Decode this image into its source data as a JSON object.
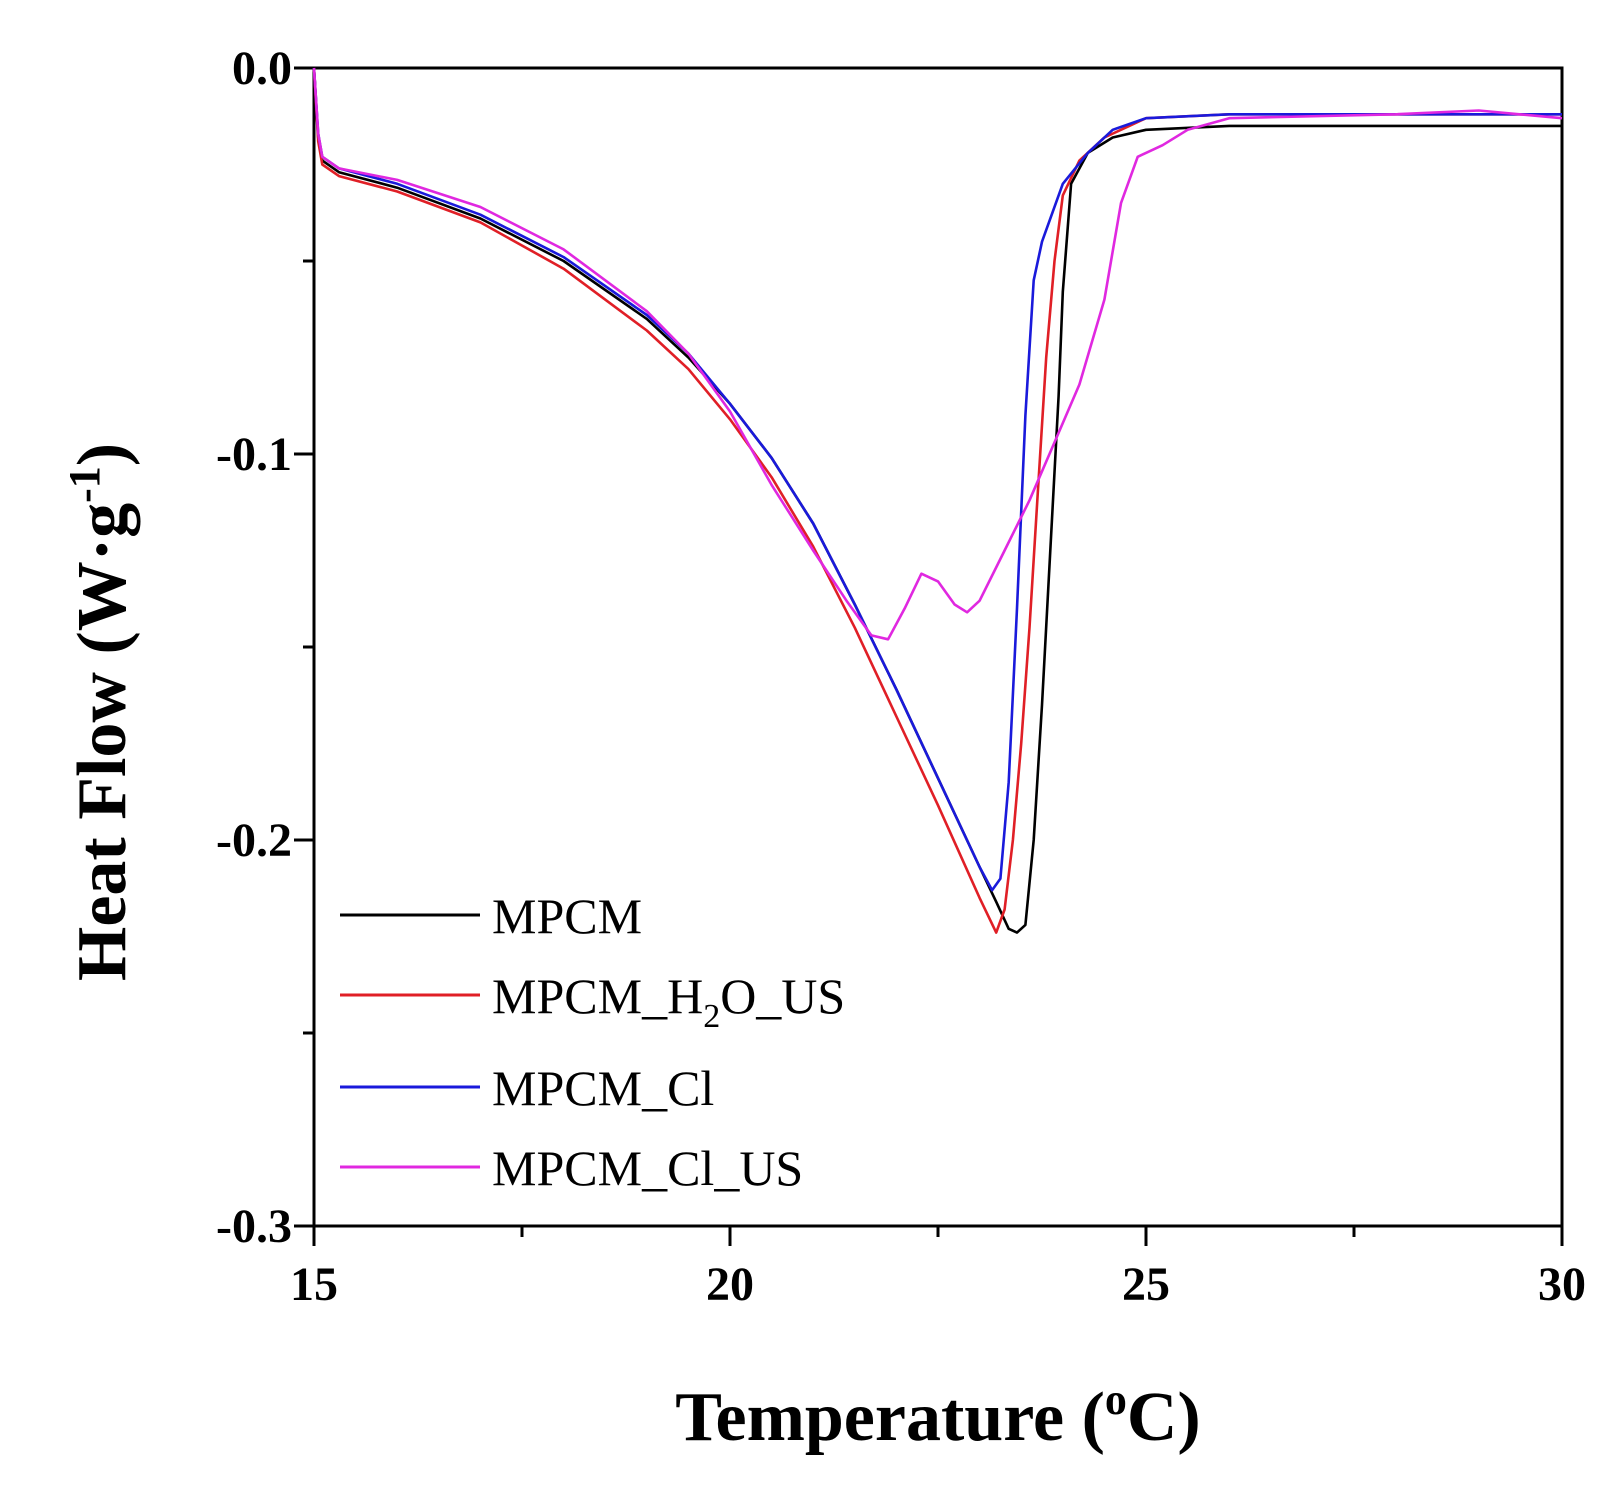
{
  "chart_data": {
    "type": "line",
    "xlabel": "Temperature (°C)",
    "xlabel_parts": {
      "before": "Temperature (",
      "sup": "o",
      "after": "C)"
    },
    "ylabel": "Heat Flow (W·g⁻¹)",
    "ylabel_parts": {
      "before": "Heat Flow (W·g",
      "sup": "-1",
      "after": ")"
    },
    "xlim": [
      15,
      30
    ],
    "ylim": [
      -0.3,
      0.0
    ],
    "x_ticks": [
      15,
      20,
      25,
      30
    ],
    "x_tick_labels": [
      "15",
      "20",
      "25",
      "30"
    ],
    "x_minor_ticks": [
      17.5,
      22.5,
      27.5
    ],
    "y_ticks": [
      0.0,
      -0.1,
      -0.2,
      -0.3
    ],
    "y_tick_labels": [
      "0.0",
      "-0.1",
      "-0.2",
      "-0.3"
    ],
    "y_minor_ticks": [
      -0.05,
      -0.15,
      -0.25
    ],
    "grid": false,
    "legend_position": "bottom-left",
    "series": [
      {
        "name": "MPCM",
        "label_parts": {
          "before": "MPCM",
          "sub": "",
          "after": ""
        },
        "color": "#000000",
        "points": [
          [
            15.0,
            0.0
          ],
          [
            15.05,
            -0.018
          ],
          [
            15.1,
            -0.024
          ],
          [
            15.3,
            -0.027
          ],
          [
            16.0,
            -0.031
          ],
          [
            17.0,
            -0.039
          ],
          [
            18.0,
            -0.05
          ],
          [
            19.0,
            -0.065
          ],
          [
            19.5,
            -0.075
          ],
          [
            20.0,
            -0.087
          ],
          [
            20.5,
            -0.101
          ],
          [
            21.0,
            -0.118
          ],
          [
            21.5,
            -0.139
          ],
          [
            22.0,
            -0.161
          ],
          [
            22.5,
            -0.184
          ],
          [
            23.0,
            -0.207
          ],
          [
            23.2,
            -0.216
          ],
          [
            23.35,
            -0.223
          ],
          [
            23.45,
            -0.224
          ],
          [
            23.55,
            -0.222
          ],
          [
            23.65,
            -0.2
          ],
          [
            23.75,
            -0.165
          ],
          [
            23.85,
            -0.125
          ],
          [
            23.95,
            -0.085
          ],
          [
            24.0,
            -0.058
          ],
          [
            24.1,
            -0.03
          ],
          [
            24.3,
            -0.022
          ],
          [
            24.6,
            -0.018
          ],
          [
            25.0,
            -0.016
          ],
          [
            26.0,
            -0.015
          ],
          [
            28.0,
            -0.015
          ],
          [
            30.0,
            -0.015
          ]
        ]
      },
      {
        "name": "MPCM_H2O_US",
        "label_parts": {
          "before": "MPCM_H",
          "sub": "2",
          "after": "O_US"
        },
        "color": "#e01f26",
        "points": [
          [
            15.0,
            0.0
          ],
          [
            15.05,
            -0.019
          ],
          [
            15.1,
            -0.025
          ],
          [
            15.3,
            -0.028
          ],
          [
            16.0,
            -0.032
          ],
          [
            17.0,
            -0.04
          ],
          [
            18.0,
            -0.052
          ],
          [
            19.0,
            -0.068
          ],
          [
            19.5,
            -0.078
          ],
          [
            20.0,
            -0.091
          ],
          [
            20.5,
            -0.106
          ],
          [
            21.0,
            -0.124
          ],
          [
            21.5,
            -0.145
          ],
          [
            22.0,
            -0.168
          ],
          [
            22.5,
            -0.191
          ],
          [
            23.0,
            -0.215
          ],
          [
            23.2,
            -0.224
          ],
          [
            23.3,
            -0.218
          ],
          [
            23.4,
            -0.2
          ],
          [
            23.5,
            -0.175
          ],
          [
            23.6,
            -0.145
          ],
          [
            23.7,
            -0.11
          ],
          [
            23.8,
            -0.075
          ],
          [
            23.9,
            -0.05
          ],
          [
            24.0,
            -0.033
          ],
          [
            24.2,
            -0.024
          ],
          [
            24.5,
            -0.018
          ],
          [
            25.0,
            -0.013
          ],
          [
            26.0,
            -0.012
          ],
          [
            28.0,
            -0.012
          ],
          [
            30.0,
            -0.012
          ]
        ]
      },
      {
        "name": "MPCM_Cl",
        "label_parts": {
          "before": "MPCM_Cl",
          "sub": "",
          "after": ""
        },
        "color": "#1a1adb",
        "points": [
          [
            15.0,
            0.0
          ],
          [
            15.05,
            -0.017
          ],
          [
            15.1,
            -0.023
          ],
          [
            15.3,
            -0.026
          ],
          [
            16.0,
            -0.03
          ],
          [
            17.0,
            -0.038
          ],
          [
            18.0,
            -0.049
          ],
          [
            19.0,
            -0.064
          ],
          [
            19.5,
            -0.074
          ],
          [
            20.0,
            -0.087
          ],
          [
            20.5,
            -0.101
          ],
          [
            21.0,
            -0.118
          ],
          [
            21.5,
            -0.139
          ],
          [
            22.0,
            -0.161
          ],
          [
            22.5,
            -0.184
          ],
          [
            23.0,
            -0.207
          ],
          [
            23.15,
            -0.213
          ],
          [
            23.25,
            -0.21
          ],
          [
            23.35,
            -0.185
          ],
          [
            23.45,
            -0.14
          ],
          [
            23.55,
            -0.09
          ],
          [
            23.65,
            -0.055
          ],
          [
            23.75,
            -0.045
          ],
          [
            24.0,
            -0.03
          ],
          [
            24.3,
            -0.022
          ],
          [
            24.6,
            -0.016
          ],
          [
            25.0,
            -0.013
          ],
          [
            26.0,
            -0.012
          ],
          [
            28.0,
            -0.012
          ],
          [
            30.0,
            -0.012
          ]
        ]
      },
      {
        "name": "MPCM_Cl_US",
        "label_parts": {
          "before": "MPCM_Cl_US",
          "sub": "",
          "after": ""
        },
        "color": "#e028e0",
        "points": [
          [
            15.0,
            0.0
          ],
          [
            15.05,
            -0.017
          ],
          [
            15.1,
            -0.023
          ],
          [
            15.3,
            -0.026
          ],
          [
            16.0,
            -0.029
          ],
          [
            17.0,
            -0.036
          ],
          [
            18.0,
            -0.047
          ],
          [
            19.0,
            -0.063
          ],
          [
            19.5,
            -0.074
          ],
          [
            20.0,
            -0.089
          ],
          [
            20.5,
            -0.108
          ],
          [
            21.0,
            -0.125
          ],
          [
            21.4,
            -0.138
          ],
          [
            21.7,
            -0.147
          ],
          [
            21.9,
            -0.148
          ],
          [
            22.1,
            -0.14
          ],
          [
            22.3,
            -0.131
          ],
          [
            22.5,
            -0.133
          ],
          [
            22.7,
            -0.139
          ],
          [
            22.85,
            -0.141
          ],
          [
            23.0,
            -0.138
          ],
          [
            23.3,
            -0.125
          ],
          [
            23.6,
            -0.112
          ],
          [
            23.9,
            -0.097
          ],
          [
            24.2,
            -0.082
          ],
          [
            24.5,
            -0.06
          ],
          [
            24.7,
            -0.035
          ],
          [
            24.9,
            -0.023
          ],
          [
            25.2,
            -0.02
          ],
          [
            25.5,
            -0.016
          ],
          [
            26.0,
            -0.013
          ],
          [
            28.0,
            -0.012
          ],
          [
            29.0,
            -0.011
          ],
          [
            30.0,
            -0.013
          ]
        ]
      }
    ]
  }
}
